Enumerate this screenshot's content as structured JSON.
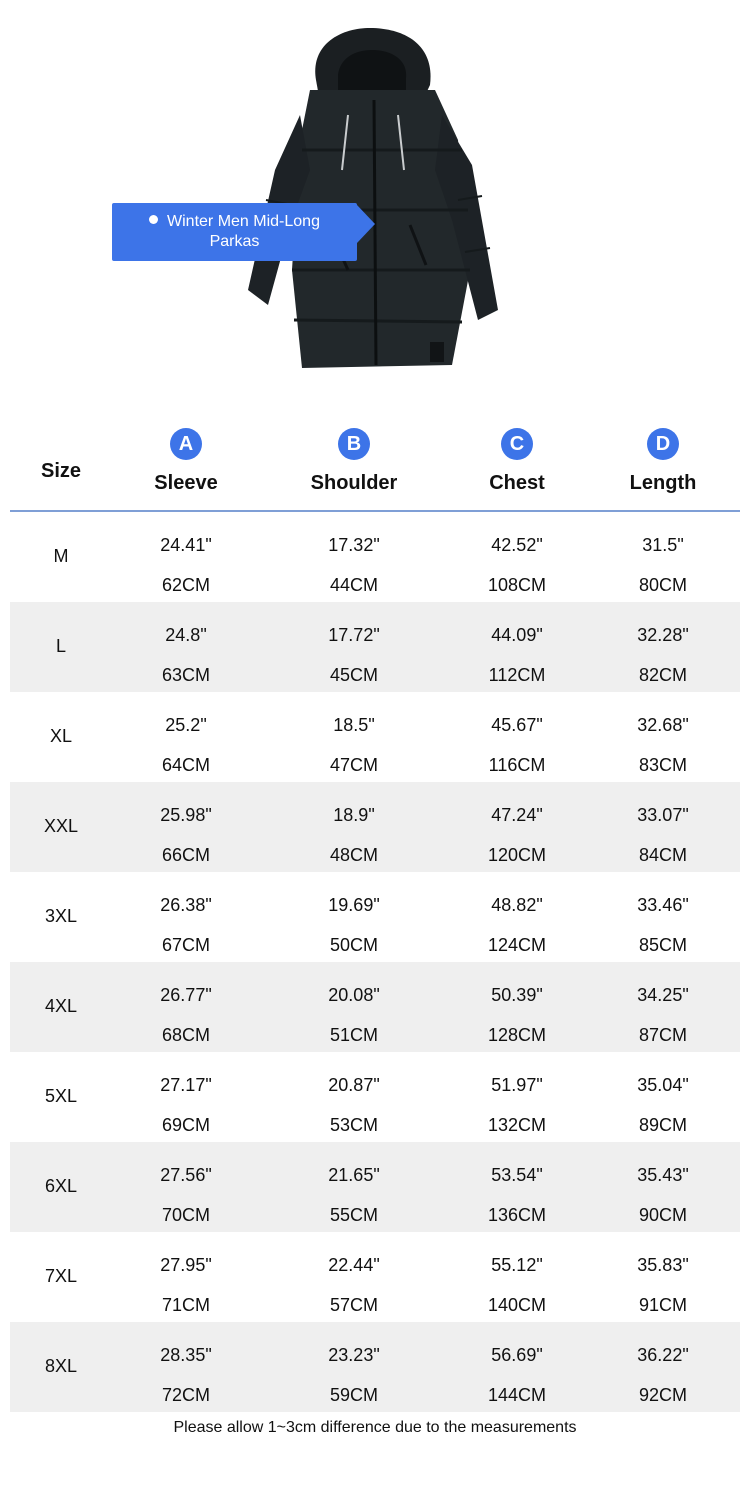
{
  "product": {
    "callout_label": "Winter Men Mid-Long Parkas"
  },
  "table": {
    "headers": {
      "size": "Size",
      "columns": [
        {
          "badge": "A",
          "label": "Sleeve"
        },
        {
          "badge": "B",
          "label": "Shoulder"
        },
        {
          "badge": "C",
          "label": "Chest"
        },
        {
          "badge": "D",
          "label": "Length"
        }
      ]
    },
    "rows": [
      {
        "size": "M",
        "values": [
          [
            "24.41\"",
            "62CM"
          ],
          [
            "17.32\"",
            "44CM"
          ],
          [
            "42.52\"",
            "108CM"
          ],
          [
            "31.5\"",
            "80CM"
          ]
        ]
      },
      {
        "size": "L",
        "values": [
          [
            "24.8\"",
            "63CM"
          ],
          [
            "17.72\"",
            "45CM"
          ],
          [
            "44.09\"",
            "112CM"
          ],
          [
            "32.28\"",
            "82CM"
          ]
        ]
      },
      {
        "size": "XL",
        "values": [
          [
            "25.2\"",
            "64CM"
          ],
          [
            "18.5\"",
            "47CM"
          ],
          [
            "45.67\"",
            "116CM"
          ],
          [
            "32.68\"",
            "83CM"
          ]
        ]
      },
      {
        "size": "XXL",
        "values": [
          [
            "25.98\"",
            "66CM"
          ],
          [
            "18.9\"",
            "48CM"
          ],
          [
            "47.24\"",
            "120CM"
          ],
          [
            "33.07\"",
            "84CM"
          ]
        ]
      },
      {
        "size": "3XL",
        "values": [
          [
            "26.38\"",
            "67CM"
          ],
          [
            "19.69\"",
            "50CM"
          ],
          [
            "48.82\"",
            "124CM"
          ],
          [
            "33.46\"",
            "85CM"
          ]
        ]
      },
      {
        "size": "4XL",
        "values": [
          [
            "26.77\"",
            "68CM"
          ],
          [
            "20.08\"",
            "51CM"
          ],
          [
            "50.39\"",
            "128CM"
          ],
          [
            "34.25\"",
            "87CM"
          ]
        ]
      },
      {
        "size": "5XL",
        "values": [
          [
            "27.17\"",
            "69CM"
          ],
          [
            "20.87\"",
            "53CM"
          ],
          [
            "51.97\"",
            "132CM"
          ],
          [
            "35.04\"",
            "89CM"
          ]
        ]
      },
      {
        "size": "6XL",
        "values": [
          [
            "27.56\"",
            "70CM"
          ],
          [
            "21.65\"",
            "55CM"
          ],
          [
            "53.54\"",
            "136CM"
          ],
          [
            "35.43\"",
            "90CM"
          ]
        ]
      },
      {
        "size": "7XL",
        "values": [
          [
            "27.95\"",
            "71CM"
          ],
          [
            "22.44\"",
            "57CM"
          ],
          [
            "55.12\"",
            "140CM"
          ],
          [
            "35.83\"",
            "91CM"
          ]
        ]
      },
      {
        "size": "8XL",
        "values": [
          [
            "28.35\"",
            "72CM"
          ],
          [
            "23.23\"",
            "59CM"
          ],
          [
            "56.69\"",
            "144CM"
          ],
          [
            "36.22\"",
            "92CM"
          ]
        ]
      }
    ]
  },
  "note": "Please allow 1~3cm difference due to the measurements",
  "colors": {
    "accent": "#3d74e8",
    "row_alt": "#efefef",
    "header_rule": "#7f9fd6",
    "jacket": "#1f2427"
  }
}
